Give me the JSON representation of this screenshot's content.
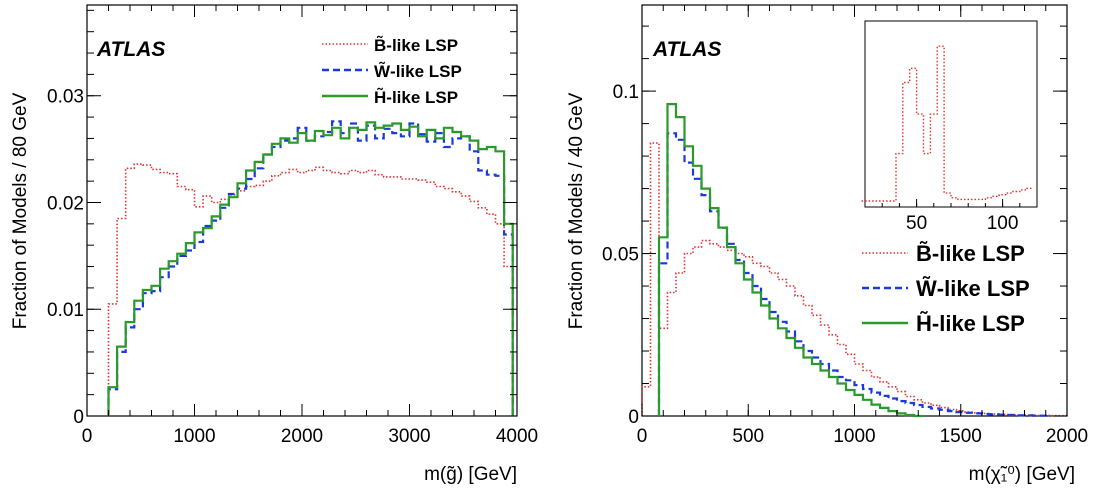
{
  "chart_data": [
    {
      "type": "line",
      "title": "",
      "experiment_label": "ATLAS",
      "xlabel": "m(g̃) [GeV]",
      "ylabel": "Fraction of Models / 80 GeV",
      "xlim": [
        0,
        4000
      ],
      "ylim": [
        0,
        0.0385
      ],
      "x_ticks": [
        0,
        1000,
        2000,
        3000,
        4000
      ],
      "y_ticks": [
        0,
        0.01,
        0.02,
        0.03
      ],
      "x_tick_labels": [
        "0",
        "1000",
        "2000",
        "3000",
        "4000"
      ],
      "y_tick_labels": [
        "0",
        "0.01",
        "0.02",
        "0.03"
      ],
      "grid": false,
      "legend_position": "top-right",
      "series": [
        {
          "name": "B̃-like LSP",
          "color": "#e03030",
          "style": "dotted",
          "x": [
            240,
            320,
            400,
            480,
            560,
            640,
            720,
            800,
            880,
            960,
            1040,
            1120,
            1200,
            1280,
            1360,
            1440,
            1520,
            1600,
            1680,
            1760,
            1840,
            1920,
            2000,
            2080,
            2160,
            2240,
            2320,
            2400,
            2480,
            2560,
            2640,
            2720,
            2800,
            2880,
            2960,
            3040,
            3120,
            3200,
            3280,
            3360,
            3440,
            3520,
            3600,
            3680,
            3760,
            3840,
            3920
          ],
          "values": [
            0.0105,
            0.0185,
            0.0232,
            0.0236,
            0.0235,
            0.0231,
            0.0228,
            0.0227,
            0.0215,
            0.0212,
            0.0196,
            0.0206,
            0.02,
            0.0203,
            0.0207,
            0.0211,
            0.0215,
            0.0216,
            0.022,
            0.0225,
            0.0228,
            0.0231,
            0.0228,
            0.023,
            0.0233,
            0.023,
            0.0228,
            0.0227,
            0.023,
            0.0228,
            0.023,
            0.0226,
            0.0224,
            0.0224,
            0.0222,
            0.0222,
            0.0221,
            0.0219,
            0.0215,
            0.0213,
            0.021,
            0.0206,
            0.0201,
            0.0195,
            0.0189,
            0.018,
            0.014
          ]
        },
        {
          "name": "W̃-like LSP",
          "color": "#1a3adc",
          "style": "dashed",
          "x": [
            240,
            320,
            400,
            480,
            560,
            640,
            720,
            800,
            880,
            960,
            1040,
            1120,
            1200,
            1280,
            1360,
            1440,
            1520,
            1600,
            1680,
            1760,
            1840,
            1920,
            2000,
            2080,
            2160,
            2240,
            2320,
            2400,
            2480,
            2560,
            2640,
            2720,
            2800,
            2880,
            2960,
            3040,
            3120,
            3200,
            3280,
            3360,
            3440,
            3520,
            3600,
            3680,
            3760,
            3840,
            3920
          ],
          "values": [
            0.0025,
            0.006,
            0.0083,
            0.01,
            0.0115,
            0.0117,
            0.013,
            0.014,
            0.015,
            0.0155,
            0.0163,
            0.0178,
            0.0183,
            0.0195,
            0.0208,
            0.0213,
            0.0222,
            0.0232,
            0.0245,
            0.0252,
            0.0258,
            0.026,
            0.027,
            0.0258,
            0.0262,
            0.0266,
            0.0276,
            0.0265,
            0.0274,
            0.0258,
            0.0272,
            0.026,
            0.0269,
            0.0265,
            0.0262,
            0.0274,
            0.0264,
            0.0257,
            0.0265,
            0.0252,
            0.026,
            0.0262,
            0.0248,
            0.023,
            0.0226,
            0.0225,
            0.017
          ]
        },
        {
          "name": "H̃-like LSP",
          "color": "#2a9a2a",
          "style": "solid",
          "x": [
            240,
            320,
            400,
            480,
            560,
            640,
            720,
            800,
            880,
            960,
            1040,
            1120,
            1200,
            1280,
            1360,
            1440,
            1520,
            1600,
            1680,
            1760,
            1840,
            1920,
            2000,
            2080,
            2160,
            2240,
            2320,
            2400,
            2480,
            2560,
            2640,
            2720,
            2800,
            2880,
            2960,
            3040,
            3120,
            3200,
            3280,
            3360,
            3440,
            3520,
            3600,
            3680,
            3760,
            3840,
            3920
          ],
          "values": [
            0.0027,
            0.0065,
            0.0088,
            0.0108,
            0.0118,
            0.0122,
            0.0138,
            0.0145,
            0.0152,
            0.0162,
            0.0172,
            0.0176,
            0.0187,
            0.0198,
            0.0205,
            0.0218,
            0.023,
            0.0238,
            0.0245,
            0.0255,
            0.026,
            0.0256,
            0.0265,
            0.0258,
            0.0267,
            0.0263,
            0.027,
            0.026,
            0.027,
            0.0268,
            0.0275,
            0.027,
            0.0272,
            0.0274,
            0.0268,
            0.0271,
            0.0262,
            0.0268,
            0.026,
            0.027,
            0.0266,
            0.0262,
            0.0258,
            0.025,
            0.0252,
            0.0248,
            0.018
          ]
        }
      ]
    },
    {
      "type": "line",
      "title": "",
      "experiment_label": "ATLAS",
      "xlabel": "m(χ̃₁⁰) [GeV]",
      "ylabel": "Fraction of Models / 40 GeV",
      "xlim": [
        0,
        2000
      ],
      "ylim": [
        0,
        0.1265
      ],
      "x_ticks": [
        0,
        500,
        1000,
        1500,
        2000
      ],
      "y_ticks": [
        0,
        0.05,
        0.1
      ],
      "x_tick_labels": [
        "0",
        "500",
        "1000",
        "1500",
        "2000"
      ],
      "y_tick_labels": [
        "0",
        "0.05",
        "0.1"
      ],
      "grid": false,
      "legend_position": "middle-right",
      "series": [
        {
          "name": "B̃-like LSP",
          "color": "#e03030",
          "style": "dotted",
          "x": [
            20,
            60,
            100,
            140,
            180,
            220,
            260,
            300,
            340,
            380,
            420,
            460,
            500,
            540,
            580,
            620,
            660,
            700,
            740,
            780,
            820,
            860,
            900,
            940,
            980,
            1020,
            1060,
            1100,
            1140,
            1180,
            1220,
            1260,
            1300,
            1340,
            1380,
            1420,
            1460,
            1500,
            1540,
            1580,
            1620,
            1660,
            1700,
            1740,
            1780,
            1820,
            1860,
            1900,
            1940,
            1980
          ],
          "values": [
            0.009,
            0.084,
            0.027,
            0.038,
            0.044,
            0.05,
            0.052,
            0.054,
            0.053,
            0.052,
            0.051,
            0.05,
            0.049,
            0.047,
            0.046,
            0.044,
            0.042,
            0.04,
            0.037,
            0.034,
            0.031,
            0.028,
            0.025,
            0.022,
            0.019,
            0.016,
            0.014,
            0.012,
            0.0105,
            0.009,
            0.0075,
            0.006,
            0.005,
            0.004,
            0.0033,
            0.0026,
            0.002,
            0.0016,
            0.0012,
            0.001,
            0.0008,
            0.0006,
            0.0005,
            0.0004,
            0.0003,
            0.0003,
            0.0002,
            0.0002,
            0.0001,
            0.0001
          ]
        },
        {
          "name": "W̃-like LSP",
          "color": "#1a3adc",
          "style": "dashed",
          "x": [
            100,
            140,
            180,
            220,
            260,
            300,
            340,
            380,
            420,
            460,
            500,
            540,
            580,
            620,
            660,
            700,
            740,
            780,
            820,
            860,
            900,
            940,
            980,
            1020,
            1060,
            1100,
            1140,
            1180,
            1220,
            1260,
            1300,
            1340,
            1380,
            1420,
            1460,
            1500,
            1540,
            1580,
            1620,
            1660,
            1700,
            1740,
            1780,
            1820,
            1860,
            1900
          ],
          "values": [
            0.047,
            0.087,
            0.085,
            0.078,
            0.073,
            0.068,
            0.063,
            0.058,
            0.053,
            0.048,
            0.044,
            0.04,
            0.036,
            0.032,
            0.029,
            0.026,
            0.023,
            0.02,
            0.018,
            0.016,
            0.014,
            0.012,
            0.011,
            0.0095,
            0.0083,
            0.0072,
            0.0062,
            0.0054,
            0.0046,
            0.004,
            0.0034,
            0.0028,
            0.0023,
            0.0019,
            0.0015,
            0.0012,
            0.001,
            0.0008,
            0.0006,
            0.0005,
            0.0004,
            0.0003,
            0.0002,
            0.0002,
            0.0001,
            0.0001
          ]
        },
        {
          "name": "H̃-like LSP",
          "color": "#2a9a2a",
          "style": "solid",
          "x": [
            100,
            140,
            180,
            220,
            260,
            300,
            340,
            380,
            420,
            460,
            500,
            540,
            580,
            620,
            660,
            700,
            740,
            780,
            820,
            860,
            900,
            940,
            980,
            1020,
            1060,
            1100,
            1140,
            1180,
            1220,
            1260,
            1300
          ],
          "values": [
            0.055,
            0.096,
            0.092,
            0.083,
            0.077,
            0.07,
            0.064,
            0.058,
            0.052,
            0.047,
            0.042,
            0.038,
            0.034,
            0.03,
            0.027,
            0.024,
            0.021,
            0.018,
            0.016,
            0.014,
            0.012,
            0.01,
            0.008,
            0.0065,
            0.005,
            0.0035,
            0.0025,
            0.0015,
            0.0008,
            0.0003,
            0
          ]
        }
      ],
      "inset": {
        "xlim": [
          20,
          120
        ],
        "ylim": [
          0,
          1
        ],
        "x_ticks": [
          50,
          100
        ],
        "x_tick_labels": [
          "50",
          "100"
        ],
        "series": [
          {
            "name": "B̃-like LSP",
            "color": "#e03030",
            "style": "dotted",
            "x": [
              20,
              24,
              28,
              32,
              36,
              40,
              44,
              48,
              52,
              56,
              60,
              64,
              68,
              72,
              76,
              80,
              84,
              88,
              92,
              96,
              100,
              104,
              108,
              112,
              116
            ],
            "values": [
              0,
              0,
              0,
              0,
              0,
              0.3,
              0.75,
              0.84,
              0.55,
              0.3,
              0.55,
              0.98,
              0.05,
              0.02,
              0.01,
              0.01,
              0.01,
              0.01,
              0.02,
              0.03,
              0.04,
              0.05,
              0.06,
              0.07,
              0.08
            ]
          }
        ]
      }
    }
  ]
}
